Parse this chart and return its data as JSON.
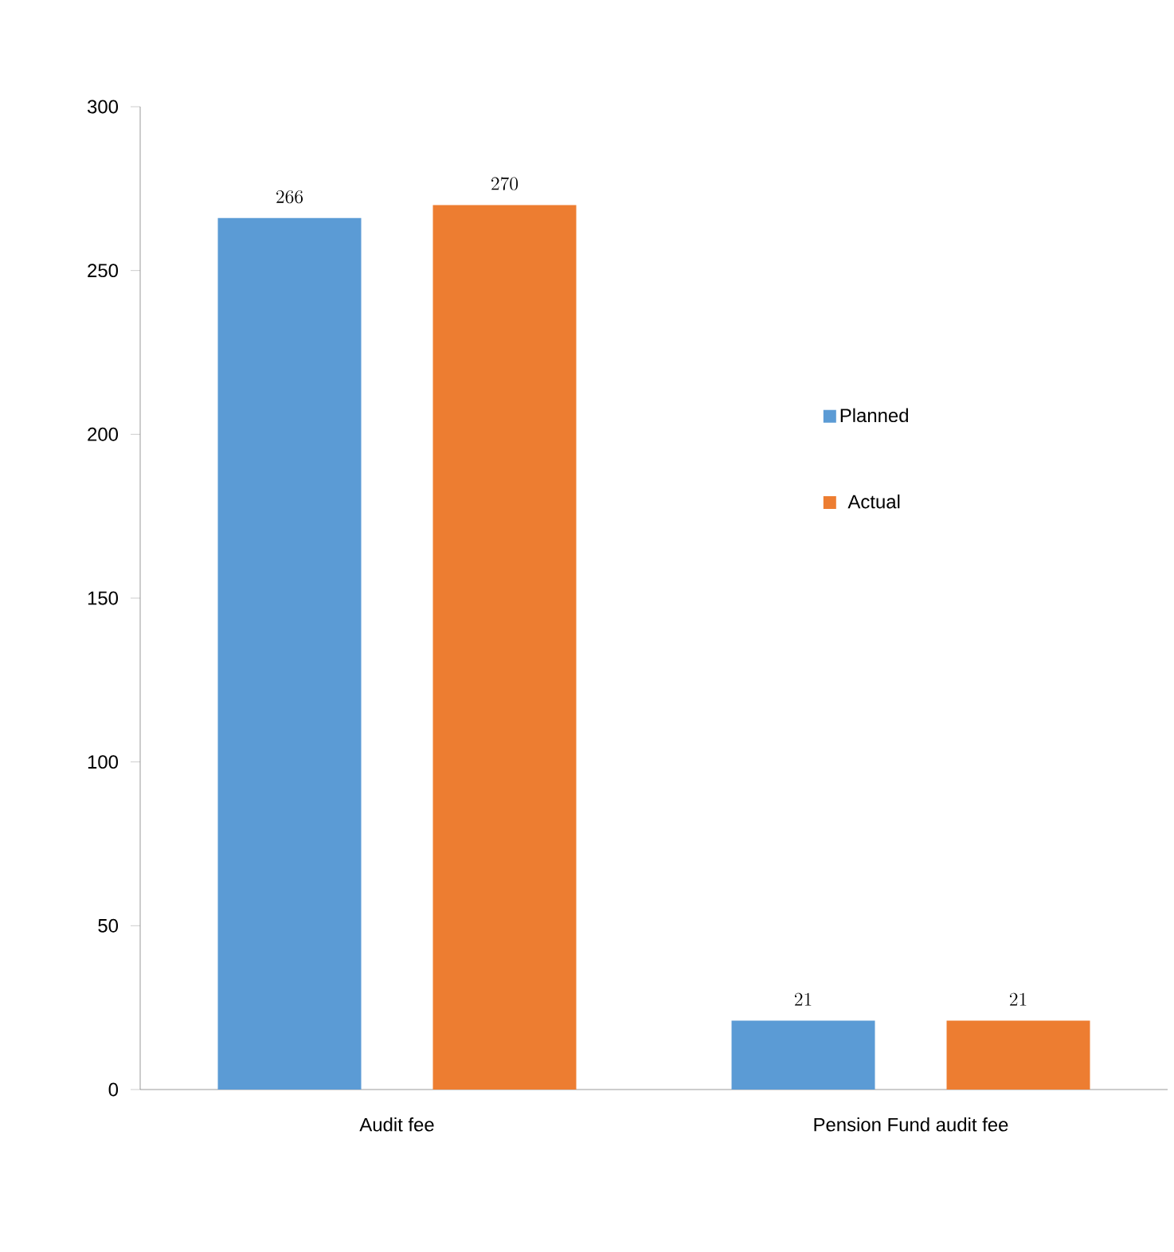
{
  "chart_data": {
    "type": "bar",
    "categories": [
      "Audit fee",
      "Pension Fund audit fee"
    ],
    "series": [
      {
        "name": "Planned",
        "color": "#5b9bd5",
        "values": [
          266,
          21
        ]
      },
      {
        "name": "Actual",
        "color": "#ed7d31",
        "values": [
          270,
          21
        ]
      }
    ],
    "ylim": [
      0,
      300
    ],
    "yticks": [
      0,
      50,
      100,
      150,
      200,
      250,
      300
    ],
    "data_labels": true,
    "grid": false,
    "legend": "right"
  }
}
